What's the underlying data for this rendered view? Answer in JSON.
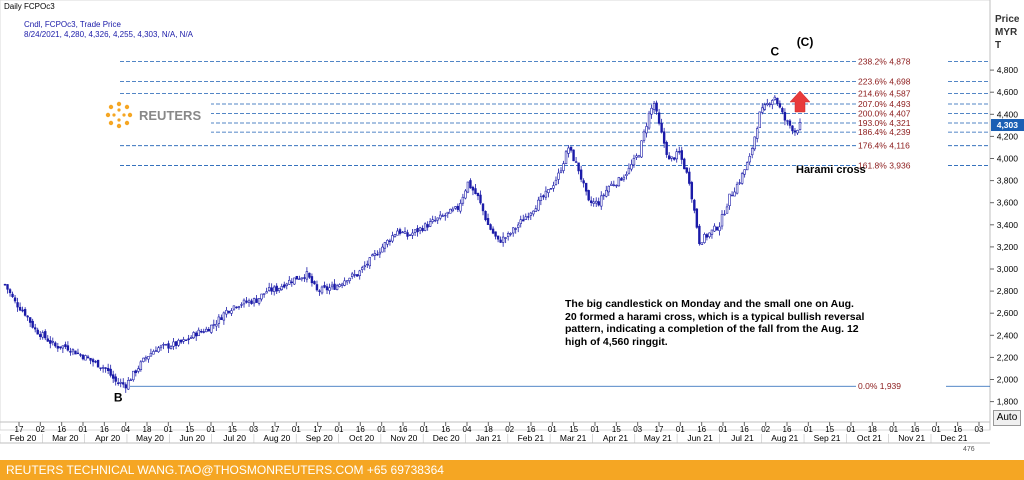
{
  "header": {
    "window_title": "Daily FCPOc3",
    "series_info": "Cndl, FCPOc3, Trade Price",
    "ohlc_line": "8/24/2021, 4,280, 4,326, 4,255, 4,303, N/A, N/A"
  },
  "price_axis_title": [
    "Price",
    "MYR",
    "T"
  ],
  "logo_text": "REUTERS",
  "auto_button": "Auto",
  "scroll_label": "476",
  "footer_text": "REUTERS TECHNICAL  WANG.TAO@THOSMONREUTERS.COM  +65 69738364",
  "annotation_note": "The big candlestick on Monday and the small one on Aug. 20 formed a harami cross, which is a typical bullish reversal pattern, indicating a completion of the fall  from the Aug. 12 high of 4,560 ringgit.",
  "colors": {
    "candle": "#1a1aa8",
    "fib_line": "#1a5fb4",
    "fib_label": "#8b1a1a",
    "arrow": "#e83b3b",
    "footer": "#f5a623",
    "last_price": "#1a5fb4"
  },
  "chart_data": {
    "type": "candlestick",
    "instrument": "FCPOc3",
    "ylabel": "Price MYR T",
    "ylim": [
      1700,
      5100
    ],
    "y_ticks": [
      1800,
      2000,
      2200,
      2400,
      2600,
      2800,
      3000,
      3200,
      3400,
      3600,
      3800,
      4000,
      4200,
      4400,
      4600,
      4800
    ],
    "y_tick_labels": [
      "1,800",
      "2,000",
      "2,200",
      "2,400",
      "2,600",
      "2,800",
      "3,000",
      "3,200",
      "3,400",
      "3,600",
      "3,800",
      "4,000",
      "4,200",
      "4,400",
      "4,600",
      "4,800"
    ],
    "last_price_label": "4,303",
    "x_day_ticks": [
      "17",
      "02",
      "16",
      "01",
      "16",
      "04",
      "18",
      "01",
      "15",
      "01",
      "15",
      "03",
      "17",
      "01",
      "17",
      "01",
      "16",
      "01",
      "16",
      "01",
      "16",
      "04",
      "18",
      "02",
      "16",
      "01",
      "15",
      "01",
      "15",
      "03",
      "17",
      "01",
      "16",
      "01",
      "16",
      "02",
      "16",
      "01",
      "15",
      "01",
      "18",
      "01",
      "16",
      "01",
      "16",
      "03"
    ],
    "x_month_labels": [
      "Feb 20",
      "Mar 20",
      "Apr 20",
      "May 20",
      "Jun 20",
      "Jul 20",
      "Aug 20",
      "Sep 20",
      "Oct 20",
      "Nov 20",
      "Dec 20",
      "Jan 21",
      "Feb 21",
      "Mar 21",
      "Apr 21",
      "May 21",
      "Jun 21",
      "Jul 21",
      "Aug 21",
      "Sep 21",
      "Oct 21",
      "Nov 21",
      "Dec 21"
    ],
    "fib_levels": [
      {
        "label": "238.2% 4,878",
        "value": 4878
      },
      {
        "label": "223.6% 4,698",
        "value": 4698
      },
      {
        "label": "214.6% 4,587",
        "value": 4587
      },
      {
        "label": "207.0% 4,493",
        "value": 4493
      },
      {
        "label": "200.0% 4,407",
        "value": 4407
      },
      {
        "label": "193.0% 4,321",
        "value": 4321
      },
      {
        "label": "186.4% 4,239",
        "value": 4239
      },
      {
        "label": "176.4% 4,116",
        "value": 4116
      },
      {
        "label": "161.8% 3,936",
        "value": 3936
      },
      {
        "label": "0.0% 1,939",
        "value": 1939
      }
    ],
    "wave_labels": [
      {
        "text": "B",
        "x_index": 45,
        "value": 1800
      },
      {
        "text": "C",
        "x_index": 306,
        "value": 4930
      },
      {
        "text": "(C)",
        "x_index": 318,
        "value": 5020
      }
    ],
    "callout": {
      "text": "Harami cross",
      "x_index": 316,
      "value": 3870
    },
    "close_path": [
      [
        0,
        2860
      ],
      [
        4,
        2700
      ],
      [
        8,
        2600
      ],
      [
        12,
        2450
      ],
      [
        16,
        2380
      ],
      [
        20,
        2300
      ],
      [
        24,
        2300
      ],
      [
        28,
        2250
      ],
      [
        32,
        2200
      ],
      [
        36,
        2150
      ],
      [
        40,
        2100
      ],
      [
        44,
        1980
      ],
      [
        48,
        1950
      ],
      [
        52,
        2080
      ],
      [
        56,
        2200
      ],
      [
        60,
        2280
      ],
      [
        64,
        2300
      ],
      [
        68,
        2320
      ],
      [
        72,
        2350
      ],
      [
        76,
        2420
      ],
      [
        80,
        2450
      ],
      [
        84,
        2520
      ],
      [
        88,
        2620
      ],
      [
        92,
        2680
      ],
      [
        96,
        2700
      ],
      [
        100,
        2720
      ],
      [
        104,
        2800
      ],
      [
        108,
        2820
      ],
      [
        112,
        2880
      ],
      [
        116,
        2920
      ],
      [
        120,
        2950
      ],
      [
        124,
        2800
      ],
      [
        128,
        2820
      ],
      [
        132,
        2850
      ],
      [
        136,
        2920
      ],
      [
        140,
        2950
      ],
      [
        144,
        3050
      ],
      [
        148,
        3150
      ],
      [
        152,
        3250
      ],
      [
        156,
        3350
      ],
      [
        160,
        3300
      ],
      [
        164,
        3350
      ],
      [
        168,
        3400
      ],
      [
        172,
        3450
      ],
      [
        176,
        3500
      ],
      [
        180,
        3550
      ],
      [
        184,
        3780
      ],
      [
        188,
        3650
      ],
      [
        192,
        3400
      ],
      [
        196,
        3250
      ],
      [
        200,
        3300
      ],
      [
        204,
        3400
      ],
      [
        208,
        3500
      ],
      [
        212,
        3600
      ],
      [
        216,
        3700
      ],
      [
        220,
        3850
      ],
      [
        224,
        4100
      ],
      [
        228,
        3900
      ],
      [
        232,
        3600
      ],
      [
        236,
        3600
      ],
      [
        240,
        3750
      ],
      [
        244,
        3800
      ],
      [
        248,
        3900
      ],
      [
        252,
        4050
      ],
      [
        256,
        4400
      ],
      [
        258,
        4500
      ],
      [
        260,
        4300
      ],
      [
        264,
        3980
      ],
      [
        268,
        4050
      ],
      [
        272,
        3800
      ],
      [
        276,
        3250
      ],
      [
        280,
        3320
      ],
      [
        284,
        3400
      ],
      [
        288,
        3650
      ],
      [
        292,
        3800
      ],
      [
        296,
        4000
      ],
      [
        300,
        4400
      ],
      [
        304,
        4520
      ],
      [
        306,
        4560
      ],
      [
        310,
        4350
      ],
      [
        314,
        4250
      ],
      [
        316,
        4303
      ]
    ]
  }
}
